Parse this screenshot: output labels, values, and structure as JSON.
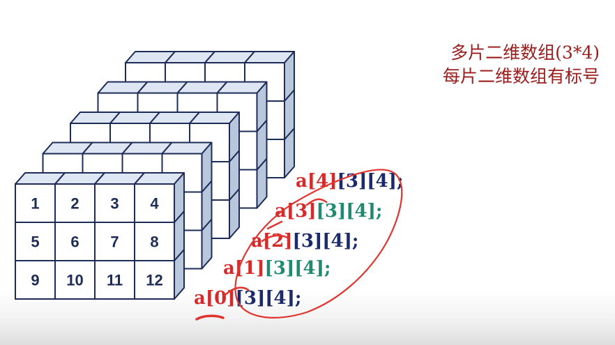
{
  "captions": [
    "多片二维数组(3*4)",
    "每片二维数组有标号"
  ],
  "cell_numbers": [
    "1",
    "2",
    "3",
    "4",
    "5",
    "6",
    "7",
    "8",
    "9",
    "10",
    "11",
    "12"
  ],
  "layer_labels": [
    {
      "parts": [
        {
          "t": "a[0]",
          "c": "#d42a2a"
        },
        {
          "t": "[3][4];",
          "c": "#1b2a6b"
        }
      ]
    },
    {
      "parts": [
        {
          "t": "a[1]",
          "c": "#d42a2a"
        },
        {
          "t": "[3][4];",
          "c": "#1f8a70"
        }
      ]
    },
    {
      "parts": [
        {
          "t": "a[2]",
          "c": "#d42a2a"
        },
        {
          "t": "[3][4];",
          "c": "#1b2a6b"
        }
      ]
    },
    {
      "parts": [
        {
          "t": "a[3]",
          "c": "#d42a2a"
        },
        {
          "t": "[3][4];",
          "c": "#1f8a70"
        }
      ]
    },
    {
      "parts": [
        {
          "t": "a[4]",
          "c": "#d42a2a"
        },
        {
          "t": "[3][4];",
          "c": "#1b2a6b"
        }
      ]
    }
  ],
  "colors": {
    "cube_face": "#ffffff",
    "cube_top": "#dde6f2",
    "cube_side": "#b9c7dc",
    "cube_stroke": "#1d2b57",
    "number": "#1d2b57",
    "annotation": "#e0342f",
    "caption": "#9b1c1c"
  }
}
